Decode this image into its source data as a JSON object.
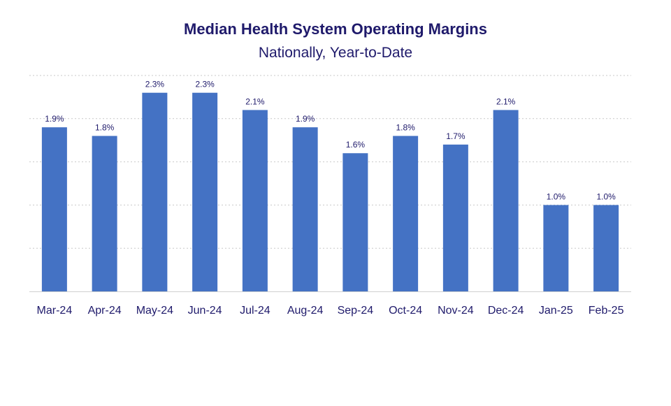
{
  "chart_data": {
    "type": "bar",
    "title": "Median Health System Operating Margins",
    "subtitle": "Nationally, Year-to-Date",
    "categories": [
      "Mar-24",
      "Apr-24",
      "May-24",
      "Jun-24",
      "Jul-24",
      "Aug-24",
      "Sep-24",
      "Oct-24",
      "Nov-24",
      "Dec-24",
      "Jan-25",
      "Feb-25"
    ],
    "values": [
      1.9,
      1.8,
      2.3,
      2.3,
      2.1,
      1.9,
      1.6,
      1.8,
      1.7,
      2.1,
      1.0,
      1.0
    ],
    "data_labels": [
      "1.9%",
      "1.8%",
      "2.3%",
      "2.3%",
      "2.1%",
      "1.9%",
      "1.6%",
      "1.8%",
      "1.7%",
      "2.1%",
      "1.0%",
      "1.0%"
    ],
    "xlabel": "",
    "ylabel": "",
    "ylim": [
      0,
      2.5
    ],
    "y_gridlines": [
      0.5,
      1.0,
      1.5,
      2.0,
      2.5
    ],
    "grid": true,
    "legend": "none",
    "colors": {
      "bar": "#4472c4",
      "text": "#1f1a6b"
    }
  }
}
